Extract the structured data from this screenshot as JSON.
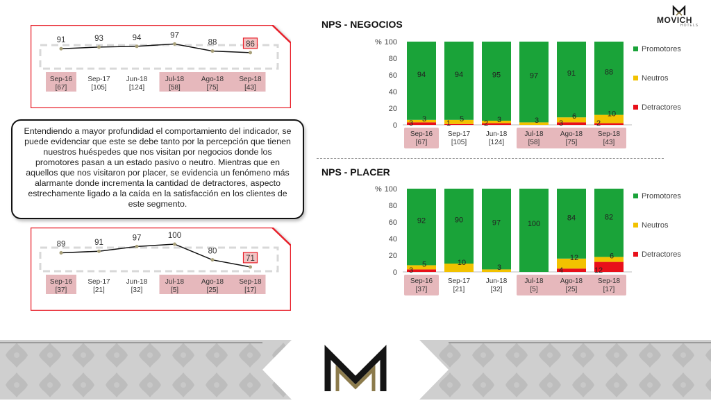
{
  "brand": {
    "name": "MOVICH",
    "sub": "HOTELS"
  },
  "colors": {
    "promotores": "#1aa339",
    "neutros": "#f2c200",
    "detractores": "#e8101a",
    "pink_label_bg": "#e6b8bc",
    "card_border": "#e8202a"
  },
  "summary_text": "Entendiendo a mayor profundidad el comportamiento del indicador, se puede evidenciar que este se debe tanto por la percepción que tienen nuestros huéspedes que nos visitan por negocios donde los promotores pasan a un estado pasivo o neutro. Mientras que en aquellos que nos visitaron por placer, se evidencia un fenómeno más alarmante donde incrementa la cantidad de detractores, aspecto estrechamente ligado a la caída en la satisfacción en los clientes de este segmento.",
  "chart_data": [
    {
      "id": "negocios-trend",
      "type": "line",
      "categories": [
        "Sep-16\n[67]",
        "Sep-17\n[105]",
        "Jun-18\n[124]",
        "Jul-18\n[58]",
        "Ago-18\n[75]",
        "Sep-18\n[43]"
      ],
      "values": [
        91,
        93,
        94,
        97,
        88,
        86
      ],
      "highlight_last": true
    },
    {
      "id": "placer-trend",
      "type": "line",
      "categories": [
        "Sep-16\n[37]",
        "Sep-17\n[21]",
        "Jun-18\n[32]",
        "Jul-18\n[5]",
        "Ago-18\n[25]",
        "Sep-18\n[17]"
      ],
      "values": [
        89,
        91,
        97,
        100,
        80,
        71
      ],
      "highlight_last": true
    },
    {
      "id": "negocios-stacked",
      "type": "bar",
      "title": "NPS - NEGOCIOS",
      "ylabel": "%",
      "ylim": [
        0,
        100
      ],
      "yticks": [
        0,
        20,
        40,
        60,
        80,
        100
      ],
      "categories": [
        "Sep-16\n[67]",
        "Sep-17\n[105]",
        "Jun-18\n[124]",
        "Jul-18\n[58]",
        "Ago-18\n[75]",
        "Sep-18\n[43]"
      ],
      "series": [
        {
          "name": "Detractores",
          "values": [
            3,
            1,
            2,
            0,
            3,
            2
          ],
          "labels": [
            "3",
            "1",
            "2",
            "",
            "3",
            "2"
          ]
        },
        {
          "name": "Neutros",
          "values": [
            3,
            5,
            3,
            3,
            6,
            10
          ],
          "labels": [
            "3",
            "5",
            "3",
            "3",
            "6",
            "10"
          ]
        },
        {
          "name": "Promotores",
          "values": [
            94,
            94,
            95,
            97,
            91,
            88
          ],
          "labels": [
            "94",
            "94",
            "95",
            "97",
            "91",
            "88"
          ]
        }
      ],
      "legend": "right"
    },
    {
      "id": "placer-stacked",
      "type": "bar",
      "title": "NPS - PLACER",
      "ylabel": "%",
      "ylim": [
        0,
        100
      ],
      "yticks": [
        0,
        20,
        40,
        60,
        80,
        100
      ],
      "categories": [
        "Sep-16\n[37]",
        "Sep-17\n[21]",
        "Jun-18\n[32]",
        "Jul-18\n[5]",
        "Ago-18\n[25]",
        "Sep-18\n[17]"
      ],
      "series": [
        {
          "name": "Detractores",
          "values": [
            3,
            0,
            0,
            0,
            4,
            12
          ],
          "labels": [
            "3",
            "",
            "",
            "",
            "4",
            "12"
          ]
        },
        {
          "name": "Neutros",
          "values": [
            5,
            10,
            3,
            0,
            12,
            6
          ],
          "labels": [
            "5",
            "10",
            "3",
            "",
            "12",
            "6"
          ]
        },
        {
          "name": "Promotores",
          "values": [
            92,
            90,
            97,
            100,
            84,
            82
          ],
          "labels": [
            "92",
            "90",
            "97",
            "100",
            "84",
            "82"
          ]
        }
      ],
      "legend": "right"
    }
  ]
}
